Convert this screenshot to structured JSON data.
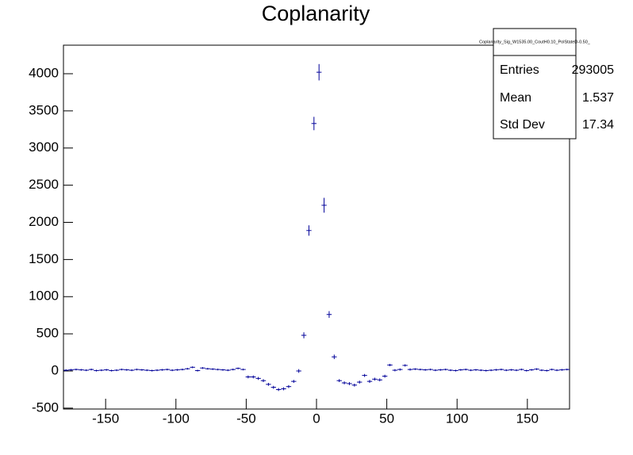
{
  "chart_data": {
    "type": "histogram",
    "title": "Coplanarity",
    "stats": {
      "name": "Coplanarity_Sig_W1535.00_CoutH0.10_PolStateD-0.50_",
      "labels": [
        "Entries",
        "Mean",
        "Std Dev"
      ],
      "values": [
        "293005",
        "1.537",
        "17.34"
      ]
    },
    "color": "#000099",
    "bins": [
      -180,
      -176.4,
      -172.8,
      -169.2,
      -165.6,
      -162,
      -158.4,
      -154.8,
      -151.2,
      -147.6,
      -144,
      -140.4,
      -136.8,
      -133.2,
      -129.6,
      -126,
      -122.4,
      -118.8,
      -115.2,
      -111.6,
      -108,
      -104.4,
      -100.8,
      -97.2,
      -93.6,
      -90,
      -86.4,
      -82.8,
      -79.2,
      -75.6,
      -72,
      -68.4,
      -64.8,
      -61.2,
      -57.6,
      -54,
      -50.4,
      -46.8,
      -43.2,
      -39.6,
      -36,
      -32.4,
      -28.8,
      -25.2,
      -21.6,
      -18,
      -14.4,
      -10.8,
      -7.2,
      -3.6,
      0,
      3.6,
      7.2,
      10.8,
      14.4,
      18,
      21.6,
      25.2,
      28.8,
      32.4,
      36,
      39.6,
      43.2,
      46.8,
      50.4,
      54,
      57.6,
      61.2,
      64.8,
      68.4,
      72,
      75.6,
      79.2,
      82.8,
      86.4,
      90,
      93.6,
      97.2,
      100.8,
      104.4,
      108,
      111.6,
      115.2,
      118.8,
      122.4,
      126,
      129.6,
      133.2,
      136.8,
      140.4,
      144,
      147.6,
      151.2,
      154.8,
      158.4,
      162,
      165.6,
      169.2,
      172.8,
      176.4,
      180
    ],
    "counts": [
      10,
      15,
      20,
      15,
      10,
      20,
      5,
      10,
      15,
      5,
      10,
      20,
      15,
      10,
      20,
      15,
      10,
      5,
      10,
      15,
      20,
      10,
      15,
      20,
      30,
      50,
      5,
      40,
      30,
      25,
      20,
      15,
      10,
      20,
      35,
      20,
      -80,
      -80,
      -100,
      -130,
      -180,
      -220,
      -250,
      -240,
      -210,
      -140,
      0,
      480,
      1890,
      3330,
      4020,
      2230,
      760,
      190,
      -130,
      -160,
      -170,
      -190,
      -150,
      -60,
      -140,
      -110,
      -120,
      -70,
      80,
      10,
      20,
      75,
      20,
      25,
      20,
      15,
      20,
      10,
      15,
      20,
      10,
      5,
      15,
      20,
      10,
      15,
      10,
      5,
      10,
      15,
      20,
      10,
      15,
      10,
      20,
      5,
      15,
      25,
      10,
      5,
      20,
      10,
      15,
      20
    ],
    "errors": [
      12,
      12,
      12,
      12,
      12,
      12,
      12,
      12,
      12,
      12,
      12,
      12,
      12,
      12,
      12,
      12,
      12,
      12,
      12,
      12,
      12,
      12,
      12,
      12,
      12,
      12,
      12,
      12,
      12,
      12,
      12,
      12,
      12,
      12,
      12,
      12,
      20,
      20,
      20,
      20,
      20,
      20,
      20,
      20,
      20,
      20,
      25,
      40,
      70,
      90,
      110,
      100,
      45,
      30,
      20,
      20,
      20,
      20,
      20,
      20,
      20,
      20,
      20,
      20,
      15,
      15,
      15,
      15,
      15,
      12,
      12,
      12,
      12,
      12,
      12,
      12,
      12,
      12,
      12,
      12,
      12,
      12,
      12,
      12,
      12,
      12,
      12,
      12,
      12,
      12,
      12,
      12,
      12,
      12,
      12,
      12,
      12,
      12,
      12,
      12
    ],
    "xlim": [
      -180,
      180
    ],
    "ylim": [
      -512,
      4384
    ],
    "xticks": [
      -150,
      -100,
      -50,
      0,
      50,
      100,
      150
    ],
    "yticks": [
      -500,
      0,
      500,
      1000,
      1500,
      2000,
      2500,
      3000,
      3500,
      4000
    ]
  }
}
